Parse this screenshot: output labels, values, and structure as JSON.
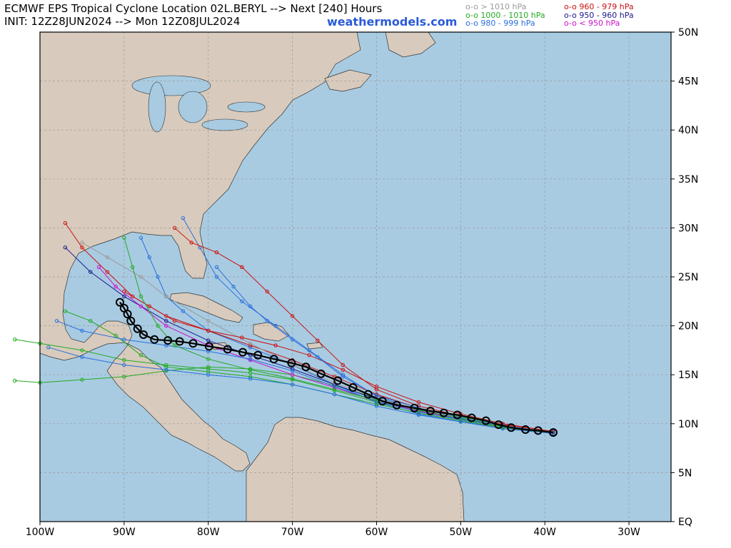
{
  "header": {
    "title_line1": "ECMWF EPS Tropical Cyclone Location 02L.BERYL --> Next [240] Hours",
    "title_line2": "INIT: 12Z28JUN2024 --> Mon 12Z08JUL2024",
    "site": "weathermodels.com"
  },
  "legend": [
    {
      "text": "o-o > 1010 hPa",
      "color": "#9a9a9a"
    },
    {
      "text": "o-o 1000 - 1010 hPa",
      "color": "#22aa22"
    },
    {
      "text": "o-o 980 - 999 hPa",
      "color": "#2a6fdb"
    },
    {
      "text": "o-o 960 - 979 hPa",
      "color": "#cc1111"
    },
    {
      "text": "o-o 950 - 960 hPa",
      "color": "#1a1a8c"
    },
    {
      "text": "o-o < 950 hPa",
      "color": "#cc11cc"
    }
  ],
  "axes": {
    "lat_labels": [
      "50N",
      "45N",
      "40N",
      "35N",
      "30N",
      "25N",
      "20N",
      "15N",
      "10N",
      "5N",
      "EQ"
    ],
    "lon_labels": [
      "100W",
      "90W",
      "80W",
      "70W",
      "60W",
      "50W",
      "40W",
      "30W"
    ],
    "lat_range": [
      0,
      50
    ],
    "lon_range": [
      -100,
      -25
    ]
  },
  "colors": {
    "ocean": "#a8cbe2",
    "land": "#d8cbbd",
    "grid": "#9a9a9a",
    "mean_track": "#000000"
  },
  "mean_track": [
    [
      -39.0,
      9.1
    ],
    [
      -40.8,
      9.3
    ],
    [
      -42.3,
      9.4
    ],
    [
      -44.0,
      9.6
    ],
    [
      -45.5,
      9.9
    ],
    [
      -47.0,
      10.3
    ],
    [
      -48.7,
      10.6
    ],
    [
      -50.4,
      10.9
    ],
    [
      -52.0,
      11.1
    ],
    [
      -53.6,
      11.3
    ],
    [
      -55.5,
      11.6
    ],
    [
      -57.6,
      11.9
    ],
    [
      -59.3,
      12.3
    ],
    [
      -61.0,
      13.0
    ],
    [
      -62.8,
      13.7
    ],
    [
      -64.6,
      14.4
    ],
    [
      -66.6,
      15.1
    ],
    [
      -68.4,
      15.8
    ],
    [
      -70.1,
      16.2
    ],
    [
      -72.2,
      16.6
    ],
    [
      -74.1,
      17.0
    ],
    [
      -75.9,
      17.3
    ],
    [
      -77.7,
      17.6
    ],
    [
      -79.9,
      17.9
    ],
    [
      -81.8,
      18.2
    ],
    [
      -83.4,
      18.4
    ],
    [
      -84.8,
      18.5
    ],
    [
      -86.4,
      18.6
    ],
    [
      -87.7,
      19.1
    ],
    [
      -88.4,
      19.7
    ],
    [
      -89.2,
      20.5
    ],
    [
      -89.6,
      21.2
    ],
    [
      -90.0,
      21.8
    ],
    [
      -90.5,
      22.4
    ]
  ],
  "members": [
    {
      "color": "#22aa22",
      "points": [
        [
          -39,
          9.1
        ],
        [
          -45,
          9.8
        ],
        [
          -50,
          10.5
        ],
        [
          -55,
          11.3
        ],
        [
          -60,
          12.2
        ],
        [
          -65,
          13.4
        ],
        [
          -70,
          14.5
        ],
        [
          -75,
          15.2
        ],
        [
          -80,
          15.6
        ],
        [
          -85,
          16.0
        ],
        [
          -90,
          16.5
        ],
        [
          -95,
          17.5
        ],
        [
          -100,
          18.2
        ],
        [
          -103,
          18.6
        ]
      ]
    },
    {
      "color": "#22aa22",
      "points": [
        [
          -39,
          9.2
        ],
        [
          -45,
          9.9
        ],
        [
          -50,
          10.7
        ],
        [
          -55,
          11.5
        ],
        [
          -60,
          12.6
        ],
        [
          -65,
          13.9
        ],
        [
          -70,
          15.0
        ],
        [
          -75,
          15.6
        ],
        [
          -80,
          15.8
        ],
        [
          -85,
          15.4
        ],
        [
          -90,
          14.8
        ],
        [
          -95,
          14.5
        ],
        [
          -100,
          14.2
        ],
        [
          -103,
          14.4
        ]
      ]
    },
    {
      "color": "#2a6fdb",
      "points": [
        [
          -39,
          9.0
        ],
        [
          -45,
          9.6
        ],
        [
          -50,
          10.2
        ],
        [
          -55,
          11.0
        ],
        [
          -60,
          12.2
        ],
        [
          -65,
          14.0
        ],
        [
          -70,
          16.0
        ],
        [
          -75,
          17.8
        ],
        [
          -80,
          19.5
        ],
        [
          -83,
          21.5
        ],
        [
          -85,
          23.0
        ],
        [
          -86,
          25.0
        ],
        [
          -87,
          27.0
        ],
        [
          -88,
          29.0
        ]
      ]
    },
    {
      "color": "#2a6fdb",
      "points": [
        [
          -39,
          9.1
        ],
        [
          -45,
          9.7
        ],
        [
          -50,
          10.4
        ],
        [
          -55,
          11.4
        ],
        [
          -60,
          12.8
        ],
        [
          -64,
          15.0
        ],
        [
          -68,
          17.5
        ],
        [
          -72,
          20.0
        ],
        [
          -76,
          22.5
        ],
        [
          -79,
          25.0
        ],
        [
          -81,
          28.0
        ],
        [
          -83,
          31.0
        ]
      ]
    },
    {
      "color": "#cc1111",
      "points": [
        [
          -39,
          9.2
        ],
        [
          -45,
          9.9
        ],
        [
          -50,
          10.8
        ],
        [
          -55,
          11.8
        ],
        [
          -60,
          13.5
        ],
        [
          -64,
          16.0
        ],
        [
          -67,
          18.5
        ],
        [
          -70,
          21.0
        ],
        [
          -73,
          23.5
        ],
        [
          -76,
          26.0
        ],
        [
          -79,
          27.5
        ],
        [
          -82,
          28.5
        ],
        [
          -84,
          30.0
        ]
      ]
    },
    {
      "color": "#cc1111",
      "points": [
        [
          -39,
          9.0
        ],
        [
          -45,
          9.8
        ],
        [
          -50,
          10.6
        ],
        [
          -55,
          11.6
        ],
        [
          -60,
          13.0
        ],
        [
          -65,
          14.8
        ],
        [
          -70,
          16.5
        ],
        [
          -75,
          18.0
        ],
        [
          -80,
          19.5
        ],
        [
          -85,
          21.0
        ],
        [
          -89,
          23.0
        ],
        [
          -92,
          25.5
        ],
        [
          -95,
          28.0
        ],
        [
          -97,
          30.5
        ]
      ]
    },
    {
      "color": "#1a1a8c",
      "points": [
        [
          -39,
          9.1
        ],
        [
          -45,
          9.8
        ],
        [
          -50,
          10.5
        ],
        [
          -55,
          11.4
        ],
        [
          -60,
          12.5
        ],
        [
          -65,
          14.0
        ],
        [
          -70,
          15.6
        ],
        [
          -75,
          17.0
        ],
        [
          -80,
          18.5
        ],
        [
          -85,
          20.5
        ],
        [
          -90,
          23.0
        ],
        [
          -94,
          25.5
        ],
        [
          -97,
          28.0
        ]
      ]
    },
    {
      "color": "#cc11cc",
      "points": [
        [
          -39,
          9.1
        ],
        [
          -45,
          9.7
        ],
        [
          -50,
          10.5
        ],
        [
          -55,
          11.3
        ],
        [
          -60,
          12.3
        ],
        [
          -65,
          13.7
        ],
        [
          -70,
          15.0
        ],
        [
          -75,
          16.5
        ],
        [
          -80,
          18.0
        ],
        [
          -85,
          20.0
        ],
        [
          -88,
          22.0
        ],
        [
          -91,
          24.0
        ],
        [
          -93,
          26.0
        ]
      ]
    },
    {
      "color": "#22aa22",
      "points": [
        [
          -39,
          9.0
        ],
        [
          -45,
          9.6
        ],
        [
          -50,
          10.3
        ],
        [
          -55,
          11.1
        ],
        [
          -60,
          12.0
        ],
        [
          -65,
          13.0
        ],
        [
          -70,
          14.0
        ],
        [
          -75,
          14.8
        ],
        [
          -80,
          15.3
        ],
        [
          -85,
          15.8
        ],
        [
          -88,
          17.0
        ],
        [
          -91,
          19.0
        ],
        [
          -94,
          20.5
        ],
        [
          -97,
          21.5
        ]
      ]
    },
    {
      "color": "#2a6fdb",
      "points": [
        [
          -39,
          9.1
        ],
        [
          -45,
          9.7
        ],
        [
          -50,
          10.4
        ],
        [
          -55,
          11.2
        ],
        [
          -60,
          12.3
        ],
        [
          -65,
          13.8
        ],
        [
          -70,
          15.4
        ],
        [
          -75,
          16.6
        ],
        [
          -80,
          17.4
        ],
        [
          -85,
          18.0
        ],
        [
          -90,
          18.6
        ],
        [
          -95,
          19.5
        ],
        [
          -98,
          20.5
        ]
      ]
    },
    {
      "color": "#9a9a9a",
      "points": [
        [
          -39,
          9.2
        ],
        [
          -45,
          9.8
        ],
        [
          -50,
          10.6
        ],
        [
          -55,
          11.5
        ],
        [
          -60,
          12.6
        ],
        [
          -65,
          14.2
        ],
        [
          -70,
          16.0
        ],
        [
          -75,
          18.2
        ],
        [
          -80,
          20.5
        ],
        [
          -85,
          23.0
        ],
        [
          -88,
          25.0
        ],
        [
          -92,
          27.0
        ],
        [
          -95,
          28.5
        ]
      ]
    },
    {
      "color": "#2a6fdb",
      "points": [
        [
          -39,
          9.0
        ],
        [
          -45,
          9.5
        ],
        [
          -50,
          10.2
        ],
        [
          -55,
          10.9
        ],
        [
          -60,
          11.8
        ],
        [
          -65,
          13.0
        ],
        [
          -70,
          14.0
        ],
        [
          -75,
          14.6
        ],
        [
          -80,
          15.0
        ],
        [
          -85,
          15.5
        ],
        [
          -90,
          16.0
        ],
        [
          -95,
          16.8
        ],
        [
          -99,
          17.8
        ]
      ]
    },
    {
      "color": "#cc1111",
      "points": [
        [
          -39,
          9.2
        ],
        [
          -45,
          10.0
        ],
        [
          -50,
          11.0
        ],
        [
          -55,
          12.2
        ],
        [
          -60,
          13.8
        ],
        [
          -64,
          15.5
        ],
        [
          -68,
          17.0
        ],
        [
          -72,
          18.0
        ],
        [
          -76,
          18.8
        ],
        [
          -80,
          19.5
        ],
        [
          -84,
          20.5
        ],
        [
          -87,
          22.0
        ],
        [
          -90,
          23.5
        ]
      ]
    },
    {
      "color": "#22aa22",
      "points": [
        [
          -39,
          9.1
        ],
        [
          -45,
          9.7
        ],
        [
          -50,
          10.5
        ],
        [
          -55,
          11.4
        ],
        [
          -60,
          12.4
        ],
        [
          -65,
          13.5
        ],
        [
          -70,
          14.6
        ],
        [
          -75,
          15.5
        ],
        [
          -80,
          16.6
        ],
        [
          -84,
          18.0
        ],
        [
          -86,
          20.0
        ],
        [
          -88,
          23.0
        ],
        [
          -89,
          26.0
        ],
        [
          -90,
          29.0
        ]
      ]
    },
    {
      "color": "#2a6fdb",
      "points": [
        [
          -39,
          9.1
        ],
        [
          -45,
          9.8
        ],
        [
          -50,
          10.6
        ],
        [
          -55,
          11.6
        ],
        [
          -60,
          12.9
        ],
        [
          -64,
          14.8
        ],
        [
          -67,
          16.8
        ],
        [
          -70,
          18.6
        ],
        [
          -73,
          20.5
        ],
        [
          -75,
          22.0
        ],
        [
          -77,
          24.0
        ],
        [
          -79,
          26.0
        ]
      ]
    }
  ]
}
